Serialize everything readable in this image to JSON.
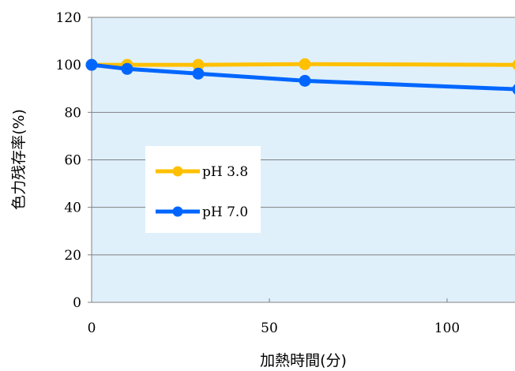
{
  "chart_data": {
    "type": "line",
    "title": "",
    "xlabel": "加熱時間(分)",
    "ylabel": "色力残存率(%)",
    "xlim": [
      0,
      120
    ],
    "ylim": [
      0,
      120
    ],
    "xticks": [
      0,
      50,
      100
    ],
    "yticks": [
      0,
      20,
      40,
      60,
      80,
      100,
      120
    ],
    "grid": "horizontal",
    "legend_position": "center-left",
    "plot_background": "#dff0fb",
    "series": [
      {
        "name": "pH 3.8",
        "color": "#ffc000",
        "x": [
          0,
          10,
          30,
          60,
          120
        ],
        "y": [
          100,
          100,
          100,
          100.3,
          100
        ]
      },
      {
        "name": "pH 7.0",
        "color": "#0066ff",
        "x": [
          0,
          10,
          30,
          60,
          120
        ],
        "y": [
          100,
          98.3,
          96.3,
          93.3,
          89.7
        ]
      }
    ]
  }
}
